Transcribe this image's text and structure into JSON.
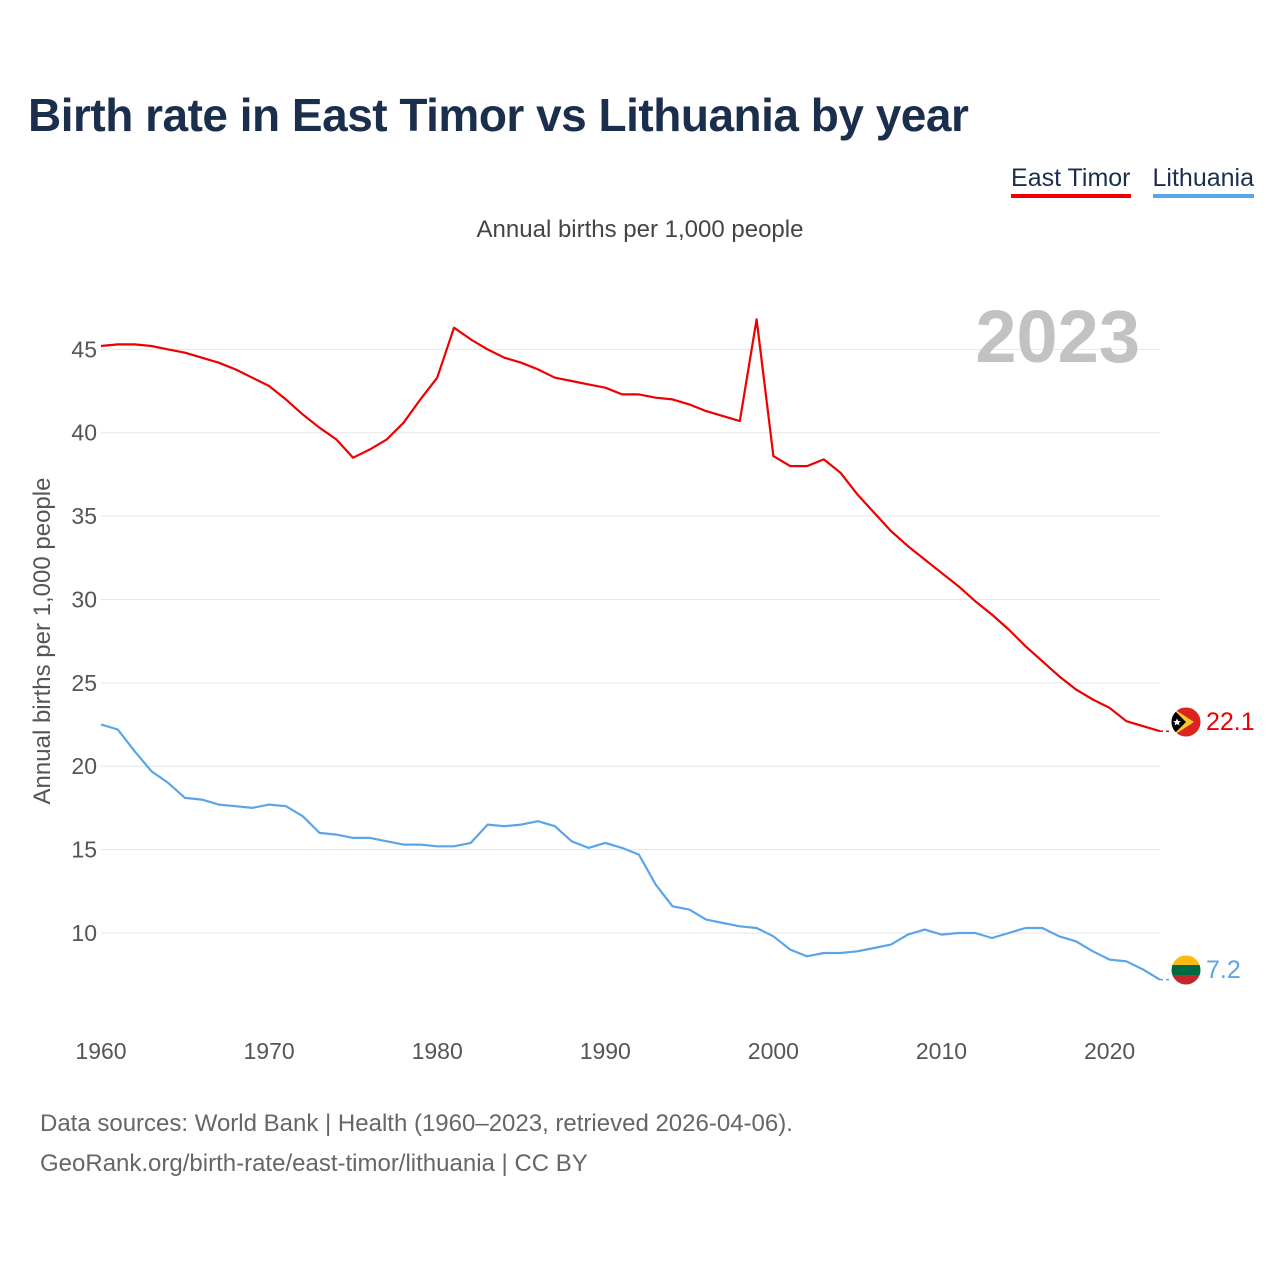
{
  "title": "Birth rate in East Timor vs Lithuania by year",
  "subtitle": "Annual births per 1,000 people",
  "legend": [
    {
      "label": "East Timor",
      "color": "#ee0000"
    },
    {
      "label": "Lithuania",
      "color": "#5aa5e8"
    }
  ],
  "year_label": "2023",
  "footer": {
    "line1": "Data sources: World Bank | Health (1960–2023, retrieved 2026-04-06).",
    "line2": "GeoRank.org/birth-rate/east-timor/lithuania | CC BY"
  },
  "chart_data": {
    "type": "line",
    "title": "Birth rate in East Timor vs Lithuania by year",
    "xlabel": "",
    "ylabel": "Annual births per 1,000 people",
    "xlim": [
      1960,
      2023
    ],
    "ylim": [
      5.5,
      48.5
    ],
    "xticks": [
      1960,
      1970,
      1980,
      1990,
      2000,
      2010,
      2020
    ],
    "yticks": [
      10,
      15,
      20,
      25,
      30,
      35,
      40,
      45
    ],
    "grid": true,
    "legend_position": "top-right",
    "series": [
      {
        "name": "East Timor",
        "color": "#ee0000",
        "end_label": "22.1",
        "x": [
          1960,
          1961,
          1962,
          1963,
          1964,
          1965,
          1966,
          1967,
          1968,
          1969,
          1970,
          1971,
          1972,
          1973,
          1974,
          1975,
          1976,
          1977,
          1978,
          1979,
          1980,
          1981,
          1982,
          1983,
          1984,
          1985,
          1986,
          1987,
          1988,
          1989,
          1990,
          1991,
          1992,
          1993,
          1994,
          1995,
          1996,
          1997,
          1998,
          1999,
          2000,
          2001,
          2002,
          2003,
          2004,
          2005,
          2006,
          2007,
          2008,
          2009,
          2010,
          2011,
          2012,
          2013,
          2014,
          2015,
          2016,
          2017,
          2018,
          2019,
          2020,
          2021,
          2022,
          2023
        ],
        "y": [
          45.2,
          45.3,
          45.3,
          45.2,
          45.0,
          44.8,
          44.5,
          44.2,
          43.8,
          43.3,
          42.8,
          42.0,
          41.1,
          40.3,
          39.6,
          38.5,
          39.0,
          39.6,
          40.6,
          42.0,
          43.3,
          46.3,
          45.6,
          45.0,
          44.5,
          44.2,
          43.8,
          43.3,
          43.1,
          42.9,
          42.7,
          42.3,
          42.3,
          42.1,
          42.0,
          41.7,
          41.3,
          41.0,
          40.7,
          46.8,
          38.6,
          38.0,
          38.0,
          38.4,
          37.6,
          36.3,
          35.2,
          34.1,
          33.2,
          32.4,
          31.6,
          30.8,
          29.9,
          29.1,
          28.2,
          27.2,
          26.3,
          25.4,
          24.6,
          24.0,
          23.5,
          22.7,
          22.4,
          22.1
        ]
      },
      {
        "name": "Lithuania",
        "color": "#5aa5e8",
        "end_label": "7.2",
        "x": [
          1960,
          1961,
          1962,
          1963,
          1964,
          1965,
          1966,
          1967,
          1968,
          1969,
          1970,
          1971,
          1972,
          1973,
          1974,
          1975,
          1976,
          1977,
          1978,
          1979,
          1980,
          1981,
          1982,
          1983,
          1984,
          1985,
          1986,
          1987,
          1988,
          1989,
          1990,
          1991,
          1992,
          1993,
          1994,
          1995,
          1996,
          1997,
          1998,
          1999,
          2000,
          2001,
          2002,
          2003,
          2004,
          2005,
          2006,
          2007,
          2008,
          2009,
          2010,
          2011,
          2012,
          2013,
          2014,
          2015,
          2016,
          2017,
          2018,
          2019,
          2020,
          2021,
          2022,
          2023
        ],
        "y": [
          22.5,
          22.2,
          20.9,
          19.7,
          19.0,
          18.1,
          18.0,
          17.7,
          17.6,
          17.5,
          17.7,
          17.6,
          17.0,
          16.0,
          15.9,
          15.7,
          15.7,
          15.5,
          15.3,
          15.3,
          15.2,
          15.2,
          15.4,
          16.5,
          16.4,
          16.5,
          16.7,
          16.4,
          15.5,
          15.1,
          15.4,
          15.1,
          14.7,
          12.9,
          11.6,
          11.4,
          10.8,
          10.6,
          10.4,
          10.3,
          9.8,
          9.0,
          8.6,
          8.8,
          8.8,
          8.9,
          9.1,
          9.3,
          9.9,
          10.2,
          9.9,
          10.0,
          10.0,
          9.7,
          10.0,
          10.3,
          10.3,
          9.8,
          9.5,
          8.9,
          8.4,
          8.3,
          7.8,
          7.2
        ]
      }
    ]
  }
}
